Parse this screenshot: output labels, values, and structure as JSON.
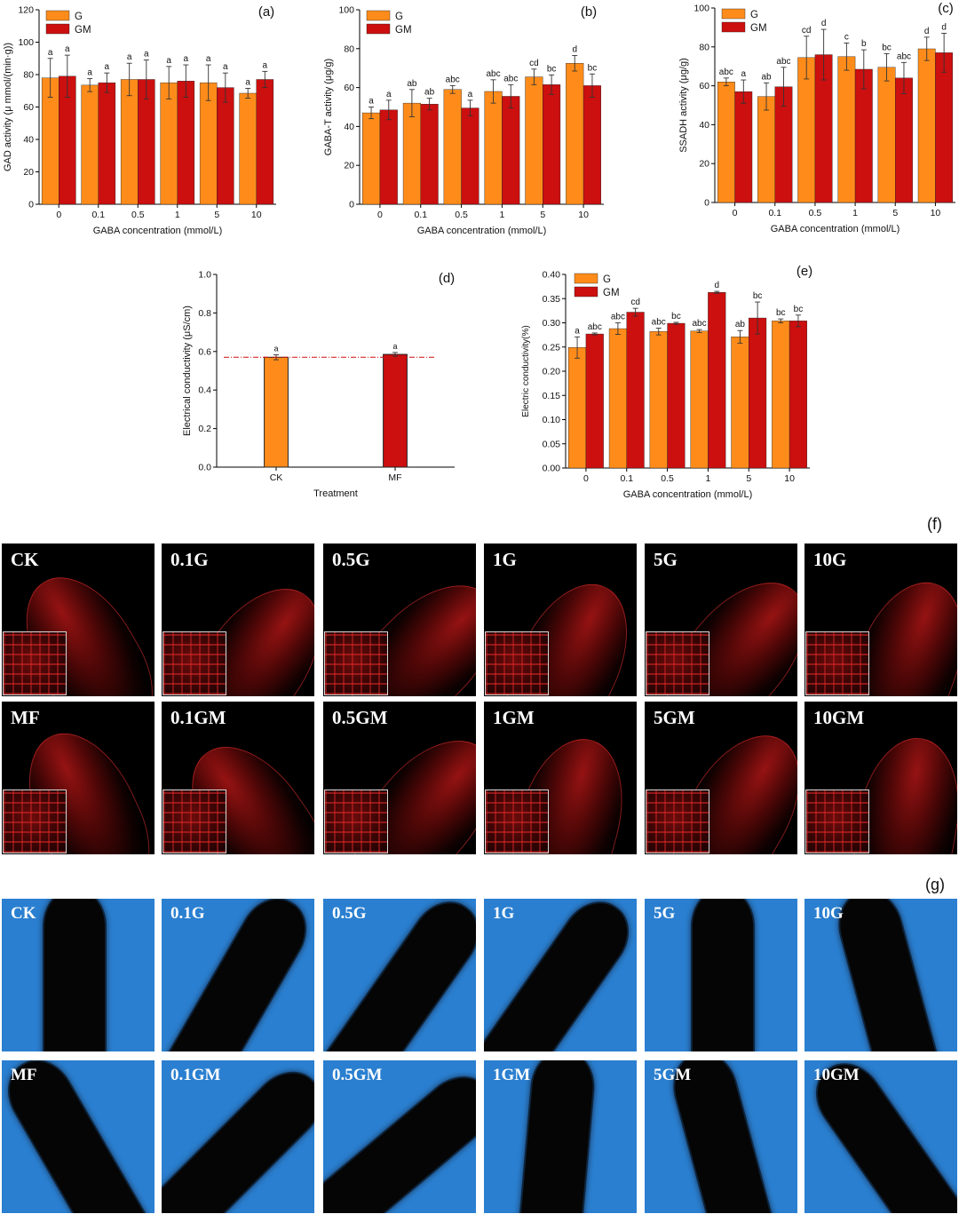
{
  "chart_data": [
    {
      "id": "a",
      "type": "bar",
      "panel_label": "(a)",
      "xlabel": "GABA concentration (mmol/L)",
      "ylabel": "GAD activity (μ mmol/(min·g))",
      "categories": [
        "0",
        "0.1",
        "0.5",
        "1",
        "5",
        "10"
      ],
      "ylim": [
        0,
        120
      ],
      "yticks": [
        "0",
        "20",
        "40",
        "60",
        "80",
        "100",
        "120"
      ],
      "legend_position": "top-left",
      "series": [
        {
          "name": "G",
          "color": "#ff8c1a",
          "values": [
            78,
            73.5,
            77,
            75,
            75,
            68.5
          ],
          "errors": [
            12,
            4,
            10,
            10,
            11,
            3
          ],
          "letters": [
            "a",
            "a",
            "a",
            "a",
            "a",
            "a"
          ]
        },
        {
          "name": "GM",
          "color": "#cc0f0f",
          "values": [
            79,
            75,
            77,
            76,
            72,
            77
          ],
          "errors": [
            13,
            6,
            12,
            10,
            9,
            5
          ],
          "letters": [
            "a",
            "a",
            "a",
            "a",
            "a",
            "a"
          ]
        }
      ]
    },
    {
      "id": "b",
      "type": "bar",
      "panel_label": "(b)",
      "xlabel": "GABA concentration (mmol/L)",
      "ylabel": "GABA-T activity (μg/g)",
      "categories": [
        "0",
        "0.1",
        "0.5",
        "1",
        "5",
        "10"
      ],
      "ylim": [
        0,
        100
      ],
      "yticks": [
        "0",
        "20",
        "40",
        "60",
        "80",
        "100"
      ],
      "legend_position": "top-left",
      "series": [
        {
          "name": "G",
          "color": "#ff8c1a",
          "values": [
            47,
            52,
            59,
            58,
            65.5,
            72.5
          ],
          "errors": [
            3,
            7,
            2,
            6,
            4,
            4
          ],
          "letters": [
            "a",
            "ab",
            "abc",
            "abc",
            "cd",
            "d"
          ]
        },
        {
          "name": "GM",
          "color": "#cc0f0f",
          "values": [
            48.5,
            51.5,
            49.5,
            55.5,
            61.5,
            61
          ],
          "errors": [
            5,
            3,
            4,
            6,
            5,
            6
          ],
          "letters": [
            "a",
            "ab",
            "a",
            "abc",
            "bc",
            "bc"
          ]
        }
      ]
    },
    {
      "id": "c",
      "type": "bar",
      "panel_label": "(c)",
      "xlabel": "GABA concentration (mmol/L)",
      "ylabel": "SSADH activity (μg/g)",
      "categories": [
        "0",
        "0.1",
        "0.5",
        "1",
        "5",
        "10"
      ],
      "ylim": [
        0,
        100
      ],
      "yticks": [
        "0",
        "20",
        "40",
        "60",
        "80",
        "100"
      ],
      "legend_position": "top-left",
      "series": [
        {
          "name": "G",
          "color": "#ff8c1a",
          "values": [
            62,
            54.5,
            74.5,
            75,
            69.5,
            79
          ],
          "errors": [
            2,
            7,
            11,
            7,
            7,
            6
          ],
          "letters": [
            "abc",
            "ab",
            "cd",
            "c",
            "bc",
            "d"
          ]
        },
        {
          "name": "GM",
          "color": "#cc0f0f",
          "values": [
            57,
            59.5,
            76,
            68.5,
            64,
            77
          ],
          "errors": [
            6,
            10,
            13,
            10,
            8,
            10
          ],
          "letters": [
            "a",
            "abc",
            "d",
            "b",
            "abc",
            "d"
          ]
        }
      ]
    },
    {
      "id": "d",
      "type": "bar",
      "panel_label": "(d)",
      "xlabel": "Treatment",
      "ylabel": "Electrical conductivity (μS/cm)",
      "categories": [
        "CK",
        "MF"
      ],
      "ylim": [
        0,
        1.0
      ],
      "yticks": [
        "0.0",
        "0.2",
        "0.4",
        "0.6",
        "0.8",
        "1.0"
      ],
      "reference_line": 0.57,
      "series": [
        {
          "name": "",
          "colors": [
            "#ff8c1a",
            "#cc0f0f"
          ],
          "values": [
            0.57,
            0.585
          ],
          "errors": [
            0.013,
            0.01
          ],
          "letters": [
            "a",
            "a"
          ]
        }
      ]
    },
    {
      "id": "e",
      "type": "bar",
      "panel_label": "(e)",
      "xlabel": "GABA concentration (mmol/L)",
      "ylabel": "Electric conductivity(%)",
      "categories": [
        "0",
        "0.1",
        "0.5",
        "1",
        "5",
        "10"
      ],
      "ylim": [
        0,
        0.4
      ],
      "yticks": [
        "0.00",
        "0.05",
        "0.10",
        "0.15",
        "0.20",
        "0.25",
        "0.30",
        "0.35",
        "0.40"
      ],
      "legend_position": "top-left",
      "series": [
        {
          "name": "G",
          "color": "#ff8c1a",
          "values": [
            0.249,
            0.288,
            0.282,
            0.283,
            0.271,
            0.304
          ],
          "errors": [
            0.022,
            0.012,
            0.007,
            0.003,
            0.013,
            0.004
          ],
          "letters": [
            "a",
            "abc",
            "abc",
            "abc",
            "ab",
            "bc"
          ]
        },
        {
          "name": "GM",
          "color": "#cc0f0f",
          "values": [
            0.277,
            0.322,
            0.299,
            0.363,
            0.31,
            0.304
          ],
          "errors": [
            0.002,
            0.008,
            0.002,
            0.002,
            0.033,
            0.012
          ],
          "letters": [
            "abc",
            "cd",
            "bc",
            "d",
            "bc",
            "bc"
          ]
        }
      ]
    }
  ],
  "panel_f": {
    "label": "(f)",
    "row1": [
      "CK",
      "0.1G",
      "0.5G",
      "1G",
      "5G",
      "10G"
    ],
    "row2": [
      "MF",
      "0.1GM",
      "0.5GM",
      "1GM",
      "5GM",
      "10GM"
    ]
  },
  "panel_g": {
    "label": "(g)",
    "row1": [
      "CK",
      "0.1G",
      "0.5G",
      "1G",
      "5G",
      "10G"
    ],
    "row2": [
      "MF",
      "0.1GM",
      "0.5GM",
      "1GM",
      "5GM",
      "10GM"
    ]
  }
}
